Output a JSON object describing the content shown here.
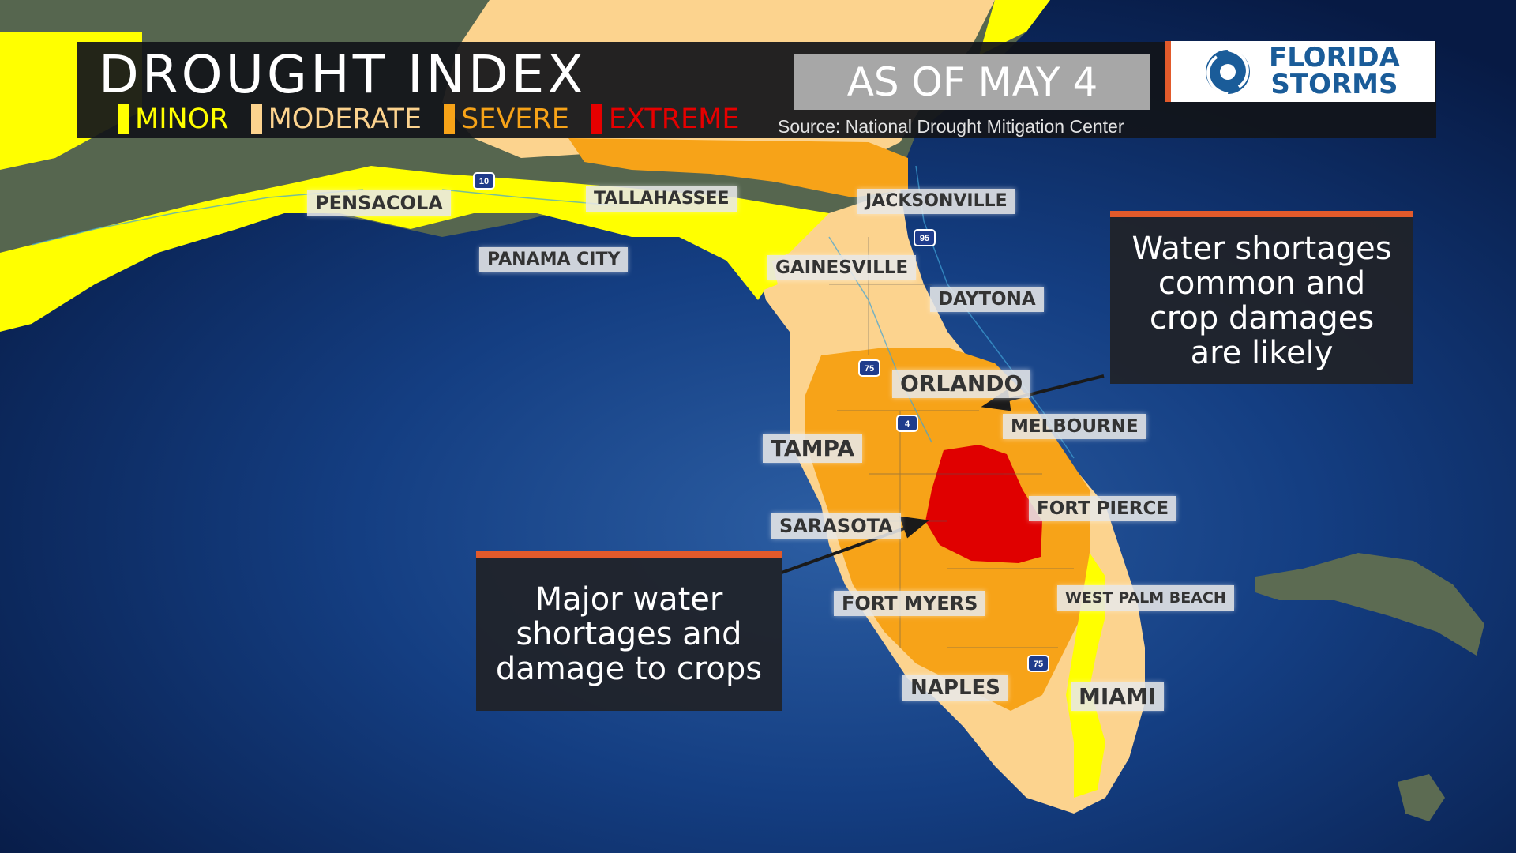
{
  "header": {
    "title": "DROUGHT INDEX",
    "as_of": "AS OF MAY 4",
    "source": "Source: National Drought Mitigation Center",
    "legend": [
      {
        "label": "MINOR",
        "color": "#ffff00"
      },
      {
        "label": "MODERATE",
        "color": "#fcd38e"
      },
      {
        "label": "SEVERE",
        "color": "#f7a318"
      },
      {
        "label": "EXTREME",
        "color": "#e60000"
      }
    ]
  },
  "logo": {
    "line1": "FLORIDA",
    "line2": "STORMS",
    "icon": "hurricane-icon"
  },
  "cities": [
    "PENSACOLA",
    "TALLAHASSEE",
    "JACKSONVILLE",
    "PANAMA CITY",
    "GAINESVILLE",
    "DAYTONA",
    "ORLANDO",
    "MELBOURNE",
    "TAMPA",
    "FORT PIERCE",
    "SARASOTA",
    "WEST PALM BEACH",
    "FORT MYERS",
    "NAPLES",
    "MIAMI"
  ],
  "highways": [
    "10",
    "95",
    "75",
    "4",
    "75"
  ],
  "callouts": {
    "top_right": "Water shortages common and crop damages are likely",
    "bottom_left": "Major water shortages and damage to crops"
  },
  "colors": {
    "ocean": "#0c2d66",
    "land": "#5b6b55",
    "callout_accent": "#e25a2b"
  }
}
